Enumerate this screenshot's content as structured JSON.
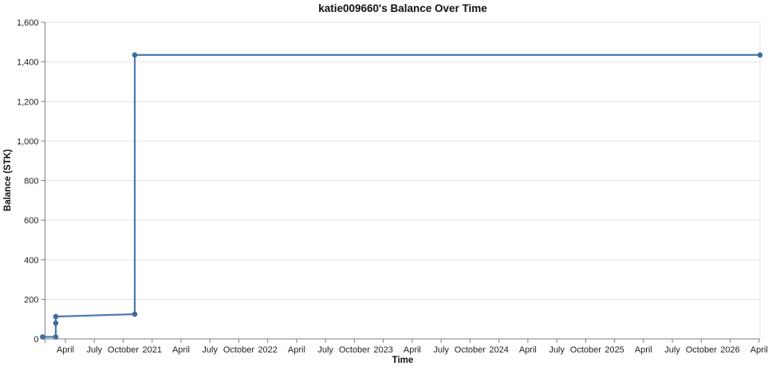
{
  "page": {
    "background": "#ffffff"
  },
  "chart_data": {
    "type": "line",
    "title": "katie009660's Balance Over Time",
    "xlabel": "Time",
    "ylabel": "Balance (STK)",
    "ylim": [
      0,
      1600
    ],
    "grid": {
      "horizontal": true,
      "vertical": false
    },
    "legend": "none",
    "x_axis": {
      "unit": "months_since_jan_2020",
      "month_start": 0.89,
      "month_end": 75.1,
      "ticks": [
        {
          "m": 3,
          "label": "April"
        },
        {
          "m": 6,
          "label": "July"
        },
        {
          "m": 9,
          "label": "October"
        },
        {
          "m": 12,
          "label": "2021"
        },
        {
          "m": 15,
          "label": "April"
        },
        {
          "m": 18,
          "label": "July"
        },
        {
          "m": 21,
          "label": "October"
        },
        {
          "m": 24,
          "label": "2022"
        },
        {
          "m": 27,
          "label": "April"
        },
        {
          "m": 30,
          "label": "July"
        },
        {
          "m": 33,
          "label": "October"
        },
        {
          "m": 36,
          "label": "2023"
        },
        {
          "m": 39,
          "label": "April"
        },
        {
          "m": 42,
          "label": "July"
        },
        {
          "m": 45,
          "label": "October"
        },
        {
          "m": 48,
          "label": "2024"
        },
        {
          "m": 51,
          "label": "April"
        },
        {
          "m": 54,
          "label": "July"
        },
        {
          "m": 57,
          "label": "October"
        },
        {
          "m": 60,
          "label": "2025"
        },
        {
          "m": 63,
          "label": "April"
        },
        {
          "m": 66,
          "label": "July"
        },
        {
          "m": 69,
          "label": "October"
        },
        {
          "m": 72,
          "label": "2026"
        },
        {
          "m": 75,
          "label": "April"
        }
      ]
    },
    "y_axis": {
      "ticks": [
        {
          "value": 0,
          "label": "0"
        },
        {
          "value": 200,
          "label": "200"
        },
        {
          "value": 400,
          "label": "400"
        },
        {
          "value": 600,
          "label": "600"
        },
        {
          "value": 800,
          "label": "800"
        },
        {
          "value": 1000,
          "label": "1,000"
        },
        {
          "value": 1200,
          "label": "1,200"
        },
        {
          "value": 1400,
          "label": "1,400"
        },
        {
          "value": 1600,
          "label": "1,600"
        }
      ]
    },
    "series": [
      {
        "name": "balance",
        "color": "#4d7bab",
        "marker_color": "#3f6da1",
        "points": [
          {
            "date": "2020-01",
            "month": 0.63,
            "value": 10
          },
          {
            "date": "2020-03",
            "month": 2.0,
            "value": 10
          },
          {
            "date": "2020-03",
            "month": 2.0,
            "value": 80
          },
          {
            "date": "2020-03",
            "month": 2.0,
            "value": 113
          },
          {
            "date": "2020-11",
            "month": 10.2,
            "value": 125
          },
          {
            "date": "2020-11",
            "month": 10.2,
            "value": 1435
          },
          {
            "date": "2026-04",
            "month": 75.1,
            "value": 1435
          }
        ]
      }
    ],
    "colors": {
      "gridline": "#e2e2e2",
      "border": "#e2e2e2",
      "axis": "#7f7f7f",
      "tick": "#7f7f7f",
      "text": "#1f1f1f"
    }
  }
}
